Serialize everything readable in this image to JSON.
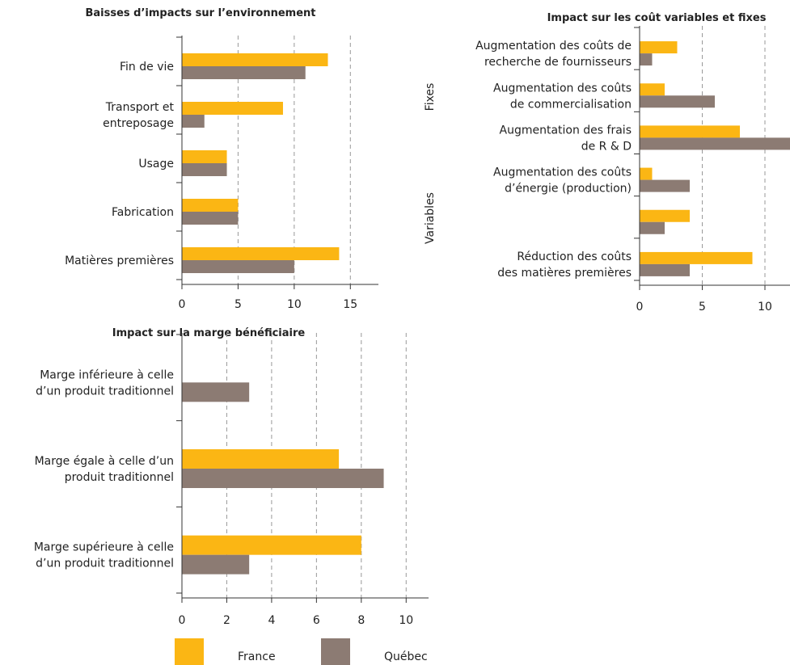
{
  "chart_data": [
    {
      "type": "barh",
      "title": "Baisses d’impacts sur l’environnement",
      "categories": [
        "Fin de vie",
        "Transport et\nentreposage",
        "Usage",
        "Fabrication",
        "Matières premières"
      ],
      "series": [
        {
          "name": "France",
          "color": "#fbb614",
          "values": [
            13,
            9,
            4,
            5,
            14
          ]
        },
        {
          "name": "Québec",
          "color": "#8c7b73",
          "values": [
            11,
            2,
            4,
            5,
            10
          ]
        }
      ],
      "xlim": [
        0,
        17.5
      ],
      "xticks": [
        0,
        5,
        10,
        15
      ],
      "grid": true
    },
    {
      "type": "barh",
      "title": "Impact sur les coût variables et fixes",
      "categories": [
        "Augmentation des coûts de\nrecherche de fournisseurs",
        "Augmentation des coûts\nde commercialisation",
        "Augmentation des frais\nde R & D",
        "Augmentation des coûts\nd’énergie (production)",
        null,
        "Réduction des coûts\ndes matières premières"
      ],
      "group_labels": [
        "Fixes",
        "Variables"
      ],
      "series": [
        {
          "name": "France",
          "color": "#fbb614",
          "values": [
            3,
            2,
            8,
            1,
            4,
            9
          ]
        },
        {
          "name": "Québec",
          "color": "#8c7b73",
          "values": [
            1,
            6,
            12,
            4,
            2,
            4
          ]
        }
      ],
      "xlim": [
        0,
        12
      ],
      "xticks": [
        0,
        5,
        10
      ],
      "grid": true
    },
    {
      "type": "barh",
      "title": "Impact sur la marge bénéficiaire",
      "categories": [
        "Marge inférieure à celle\nd’un produit traditionnel",
        "Marge égale à celle d’un\nproduit traditionnel",
        "Marge supérieure à celle\nd’un produit traditionnel"
      ],
      "series": [
        {
          "name": "France",
          "color": "#fbb614",
          "values": [
            0,
            7,
            8
          ]
        },
        {
          "name": "Québec",
          "color": "#8c7b73",
          "values": [
            3,
            9,
            3
          ]
        }
      ],
      "xlim": [
        0,
        11
      ],
      "xticks": [
        0,
        2,
        4,
        6,
        8,
        10
      ],
      "grid": true,
      "legend": "bottom"
    }
  ]
}
